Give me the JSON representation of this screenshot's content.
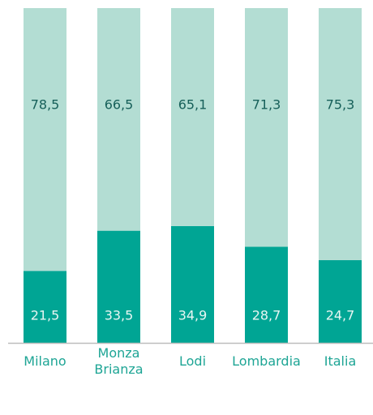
{
  "chart_data": {
    "type": "stacked_bar",
    "categories": [
      "Milano",
      "Monza Brianza",
      "Lodi",
      "Lombardia",
      "Italia"
    ],
    "series": [
      {
        "color": "#00a594",
        "values": [
          21.5,
          33.5,
          34.9,
          28.7,
          24.7
        ],
        "value_labels": [
          "21,5",
          "33,5",
          "34,9",
          "28,7",
          "24,7"
        ]
      },
      {
        "color": "#b3ddd3",
        "values": [
          78.5,
          66.5,
          65.1,
          71.3,
          75.3
        ],
        "value_labels": [
          "78,5",
          "66,5",
          "65,1",
          "71,3",
          "75,3"
        ]
      }
    ]
  }
}
